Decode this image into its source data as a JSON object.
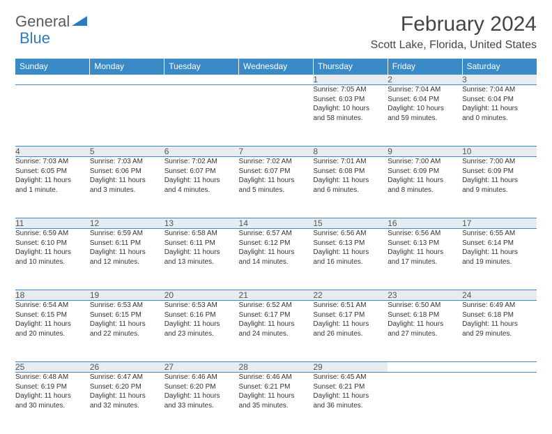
{
  "brand": {
    "part1": "General",
    "part2": "Blue"
  },
  "title": "February 2024",
  "location": "Scott Lake, Florida, United States",
  "colors": {
    "header_bg": "#3a8ac8",
    "header_text": "#ffffff",
    "daynum_bg": "#e9ecef",
    "border": "#3a8ac8",
    "body_text": "#333333",
    "logo_gray": "#5a5a5a",
    "logo_blue": "#2b7bbd"
  },
  "weekdays": [
    "Sunday",
    "Monday",
    "Tuesday",
    "Wednesday",
    "Thursday",
    "Friday",
    "Saturday"
  ],
  "weeks": [
    [
      null,
      null,
      null,
      null,
      {
        "d": "1",
        "sr": "Sunrise: 7:05 AM",
        "ss": "Sunset: 6:03 PM",
        "dl1": "Daylight: 10 hours",
        "dl2": "and 58 minutes."
      },
      {
        "d": "2",
        "sr": "Sunrise: 7:04 AM",
        "ss": "Sunset: 6:04 PM",
        "dl1": "Daylight: 10 hours",
        "dl2": "and 59 minutes."
      },
      {
        "d": "3",
        "sr": "Sunrise: 7:04 AM",
        "ss": "Sunset: 6:04 PM",
        "dl1": "Daylight: 11 hours",
        "dl2": "and 0 minutes."
      }
    ],
    [
      {
        "d": "4",
        "sr": "Sunrise: 7:03 AM",
        "ss": "Sunset: 6:05 PM",
        "dl1": "Daylight: 11 hours",
        "dl2": "and 1 minute."
      },
      {
        "d": "5",
        "sr": "Sunrise: 7:03 AM",
        "ss": "Sunset: 6:06 PM",
        "dl1": "Daylight: 11 hours",
        "dl2": "and 3 minutes."
      },
      {
        "d": "6",
        "sr": "Sunrise: 7:02 AM",
        "ss": "Sunset: 6:07 PM",
        "dl1": "Daylight: 11 hours",
        "dl2": "and 4 minutes."
      },
      {
        "d": "7",
        "sr": "Sunrise: 7:02 AM",
        "ss": "Sunset: 6:07 PM",
        "dl1": "Daylight: 11 hours",
        "dl2": "and 5 minutes."
      },
      {
        "d": "8",
        "sr": "Sunrise: 7:01 AM",
        "ss": "Sunset: 6:08 PM",
        "dl1": "Daylight: 11 hours",
        "dl2": "and 6 minutes."
      },
      {
        "d": "9",
        "sr": "Sunrise: 7:00 AM",
        "ss": "Sunset: 6:09 PM",
        "dl1": "Daylight: 11 hours",
        "dl2": "and 8 minutes."
      },
      {
        "d": "10",
        "sr": "Sunrise: 7:00 AM",
        "ss": "Sunset: 6:09 PM",
        "dl1": "Daylight: 11 hours",
        "dl2": "and 9 minutes."
      }
    ],
    [
      {
        "d": "11",
        "sr": "Sunrise: 6:59 AM",
        "ss": "Sunset: 6:10 PM",
        "dl1": "Daylight: 11 hours",
        "dl2": "and 10 minutes."
      },
      {
        "d": "12",
        "sr": "Sunrise: 6:59 AM",
        "ss": "Sunset: 6:11 PM",
        "dl1": "Daylight: 11 hours",
        "dl2": "and 12 minutes."
      },
      {
        "d": "13",
        "sr": "Sunrise: 6:58 AM",
        "ss": "Sunset: 6:11 PM",
        "dl1": "Daylight: 11 hours",
        "dl2": "and 13 minutes."
      },
      {
        "d": "14",
        "sr": "Sunrise: 6:57 AM",
        "ss": "Sunset: 6:12 PM",
        "dl1": "Daylight: 11 hours",
        "dl2": "and 14 minutes."
      },
      {
        "d": "15",
        "sr": "Sunrise: 6:56 AM",
        "ss": "Sunset: 6:13 PM",
        "dl1": "Daylight: 11 hours",
        "dl2": "and 16 minutes."
      },
      {
        "d": "16",
        "sr": "Sunrise: 6:56 AM",
        "ss": "Sunset: 6:13 PM",
        "dl1": "Daylight: 11 hours",
        "dl2": "and 17 minutes."
      },
      {
        "d": "17",
        "sr": "Sunrise: 6:55 AM",
        "ss": "Sunset: 6:14 PM",
        "dl1": "Daylight: 11 hours",
        "dl2": "and 19 minutes."
      }
    ],
    [
      {
        "d": "18",
        "sr": "Sunrise: 6:54 AM",
        "ss": "Sunset: 6:15 PM",
        "dl1": "Daylight: 11 hours",
        "dl2": "and 20 minutes."
      },
      {
        "d": "19",
        "sr": "Sunrise: 6:53 AM",
        "ss": "Sunset: 6:15 PM",
        "dl1": "Daylight: 11 hours",
        "dl2": "and 22 minutes."
      },
      {
        "d": "20",
        "sr": "Sunrise: 6:53 AM",
        "ss": "Sunset: 6:16 PM",
        "dl1": "Daylight: 11 hours",
        "dl2": "and 23 minutes."
      },
      {
        "d": "21",
        "sr": "Sunrise: 6:52 AM",
        "ss": "Sunset: 6:17 PM",
        "dl1": "Daylight: 11 hours",
        "dl2": "and 24 minutes."
      },
      {
        "d": "22",
        "sr": "Sunrise: 6:51 AM",
        "ss": "Sunset: 6:17 PM",
        "dl1": "Daylight: 11 hours",
        "dl2": "and 26 minutes."
      },
      {
        "d": "23",
        "sr": "Sunrise: 6:50 AM",
        "ss": "Sunset: 6:18 PM",
        "dl1": "Daylight: 11 hours",
        "dl2": "and 27 minutes."
      },
      {
        "d": "24",
        "sr": "Sunrise: 6:49 AM",
        "ss": "Sunset: 6:18 PM",
        "dl1": "Daylight: 11 hours",
        "dl2": "and 29 minutes."
      }
    ],
    [
      {
        "d": "25",
        "sr": "Sunrise: 6:48 AM",
        "ss": "Sunset: 6:19 PM",
        "dl1": "Daylight: 11 hours",
        "dl2": "and 30 minutes."
      },
      {
        "d": "26",
        "sr": "Sunrise: 6:47 AM",
        "ss": "Sunset: 6:20 PM",
        "dl1": "Daylight: 11 hours",
        "dl2": "and 32 minutes."
      },
      {
        "d": "27",
        "sr": "Sunrise: 6:46 AM",
        "ss": "Sunset: 6:20 PM",
        "dl1": "Daylight: 11 hours",
        "dl2": "and 33 minutes."
      },
      {
        "d": "28",
        "sr": "Sunrise: 6:46 AM",
        "ss": "Sunset: 6:21 PM",
        "dl1": "Daylight: 11 hours",
        "dl2": "and 35 minutes."
      },
      {
        "d": "29",
        "sr": "Sunrise: 6:45 AM",
        "ss": "Sunset: 6:21 PM",
        "dl1": "Daylight: 11 hours",
        "dl2": "and 36 minutes."
      },
      null,
      null
    ]
  ]
}
